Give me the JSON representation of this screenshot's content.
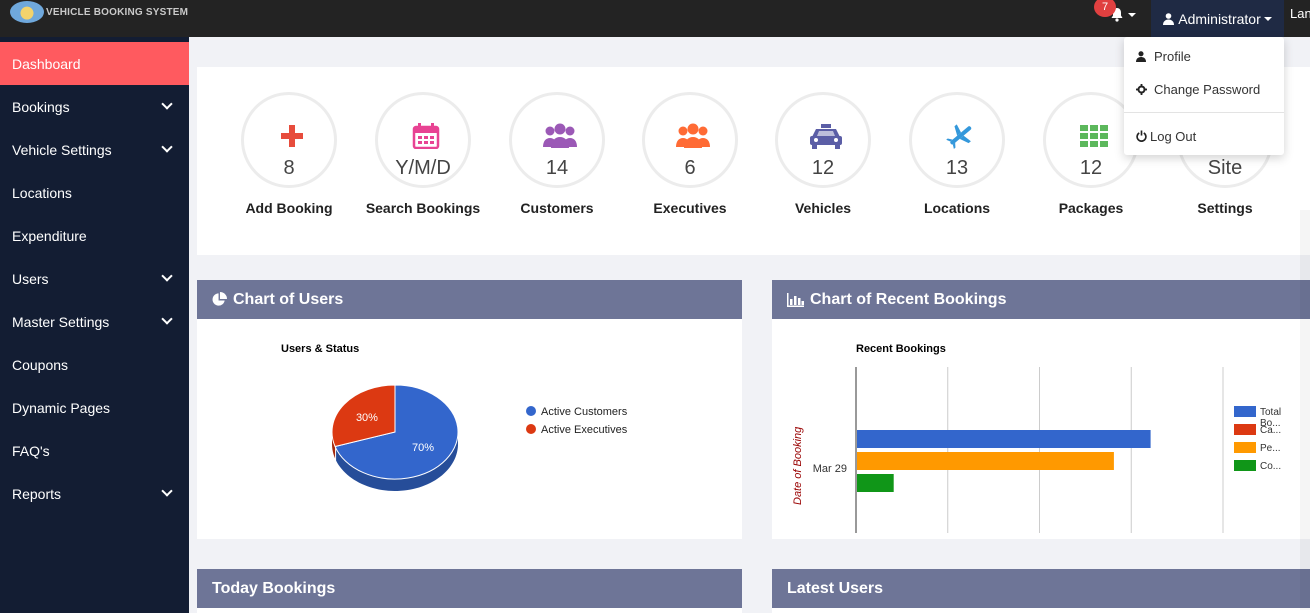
{
  "header": {
    "brand": "VEHICLE BOOKING SYSTEM",
    "notifications_count": "7",
    "user_menu_label": "Administrator",
    "language_label": "Lan"
  },
  "user_dropdown": {
    "items": [
      {
        "label": "Profile",
        "icon": "user-icon"
      },
      {
        "label": "Change Password",
        "icon": "gear-icon"
      },
      {
        "label": "Log Out",
        "icon": "power-icon"
      }
    ]
  },
  "sidebar": {
    "items": [
      {
        "label": "Dashboard",
        "active": true,
        "has_children": false
      },
      {
        "label": "Bookings",
        "has_children": true
      },
      {
        "label": "Vehicle Settings",
        "has_children": true
      },
      {
        "label": "Locations",
        "has_children": false
      },
      {
        "label": "Expenditure",
        "has_children": false
      },
      {
        "label": "Users",
        "has_children": true
      },
      {
        "label": "Master Settings",
        "has_children": true
      },
      {
        "label": "Coupons",
        "has_children": false
      },
      {
        "label": "Dynamic Pages",
        "has_children": false
      },
      {
        "label": "FAQ's",
        "has_children": false
      },
      {
        "label": "Reports",
        "has_children": true
      }
    ]
  },
  "stats": [
    {
      "value": "8",
      "label": "Add Booking",
      "icon": "plus-icon",
      "color": "#e74c3c"
    },
    {
      "value": "Y/M/D",
      "label": "Search Bookings",
      "icon": "calendar-icon",
      "color": "#e84393"
    },
    {
      "value": "14",
      "label": "Customers",
      "icon": "users-icon",
      "color": "#9b59b6"
    },
    {
      "value": "6",
      "label": "Executives",
      "icon": "users-icon",
      "color": "#ff6b35"
    },
    {
      "value": "12",
      "label": "Vehicles",
      "icon": "taxi-icon",
      "color": "#5b5ea6"
    },
    {
      "value": "13",
      "label": "Locations",
      "icon": "plane-icon",
      "color": "#3498db"
    },
    {
      "value": "12",
      "label": "Packages",
      "icon": "grid-icon",
      "color": "#5cb85c"
    },
    {
      "value": "Site",
      "label": "Settings",
      "icon": "gear-icon",
      "color": "#777777"
    }
  ],
  "panels": {
    "users_chart": "Chart of Users",
    "bookings_chart": "Chart of Recent Bookings",
    "today_bookings": "Today Bookings",
    "latest_users": "Latest Users"
  },
  "chart_data": [
    {
      "type": "pie",
      "title": "Users & Status",
      "categories": [
        "Active Customers",
        "Active Executives"
      ],
      "values": [
        70,
        30
      ],
      "slice_labels": [
        "70%",
        "30%"
      ],
      "colors": [
        "#3366cc",
        "#dc3912"
      ],
      "legend": "right"
    },
    {
      "type": "bar",
      "orientation": "horizontal",
      "title": "Recent Bookings",
      "ylabel": "Date of Booking",
      "categories": [
        "Mar 29"
      ],
      "series": [
        {
          "name": "Total Bo...",
          "values": [
            8
          ],
          "color": "#3366cc"
        },
        {
          "name": "Ca...",
          "values": [
            0
          ],
          "color": "#dc3912"
        },
        {
          "name": "Pe...",
          "values": [
            7
          ],
          "color": "#ff9900"
        },
        {
          "name": "Co...",
          "values": [
            1
          ],
          "color": "#109618"
        }
      ],
      "legend_first_line": "Total",
      "legend_second_line": "Bo...",
      "xlim": [
        0,
        10
      ],
      "xticks": [
        "0.0",
        "2.5",
        "5.0",
        "7.5",
        "10.0"
      ],
      "grid": true,
      "legend": "right"
    }
  ]
}
